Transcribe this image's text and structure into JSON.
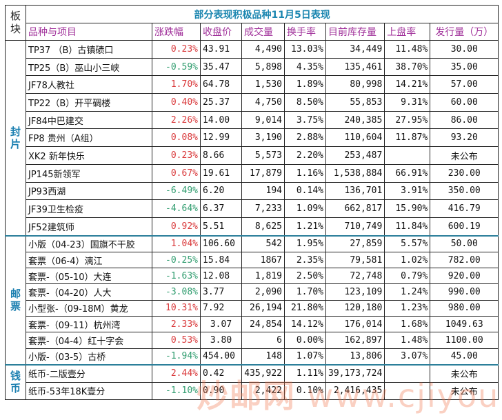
{
  "title": "部分表现积极品种11月5日表现",
  "corner_label": "板块",
  "headers": [
    "品种与项目",
    "涨跌幅",
    "收盘价",
    "成交量",
    "换手率",
    "目前库存量",
    "上盘率",
    "发行量（万）"
  ],
  "colors": {
    "up": "#d9383a",
    "down": "#2f9c6e",
    "title": "#1b86b0",
    "header": "#a0309a",
    "section": "#1b7fb0"
  },
  "sections": [
    {
      "label": "封片",
      "rows": [
        [
          "TP37 （B）古镇碛口",
          "0.23%",
          "43.91",
          "4,490",
          "13.03%",
          "34,449",
          "11.48%",
          "30.00"
        ],
        [
          "TP25（B）巫山小三峡",
          "-0.59%",
          "35.47",
          "5,898",
          "4.35%",
          "135,461",
          "38.70%",
          "35.00"
        ],
        [
          "JF78人教社",
          "1.70%",
          "64.78",
          "1,530",
          "1.89%",
          "80,998",
          "14.21%",
          "57.00"
        ],
        [
          "TP22（B）开平碉楼",
          "0.40%",
          "25.37",
          "4,750",
          "8.50%",
          "55,853",
          "9.31%",
          "60.00"
        ],
        [
          "JF84中巴建交",
          "2.26%",
          "14.00",
          "9,014",
          "3.75%",
          "240,385",
          "27.95%",
          "86.00"
        ],
        [
          "FP8 贵州（A组）",
          "0.08%",
          "12.99",
          "3,190",
          "2.88%",
          "110,604",
          "11.87%",
          "93.20"
        ],
        [
          "XK2 新年快乐",
          "0.23%",
          "8.66",
          "5,573",
          "2.20%",
          "253,487",
          "",
          "未公布"
        ],
        [
          "JP145新领军",
          "0.67%",
          "19.61",
          "17,879",
          "1.16%",
          "1,538,884",
          "66.91%",
          "230.00"
        ],
        [
          "JP93西湖",
          "-6.49%",
          "6.20",
          "194",
          "0.14%",
          "136,701",
          "3.91%",
          "350.00"
        ],
        [
          "JF39卫生检疫",
          "-4.64%",
          "6.37",
          "7,233",
          "1.09%",
          "662,817",
          "15.90%",
          "416.79"
        ],
        [
          "JF52建筑师",
          "0.92%",
          "5.51",
          "8,625",
          "1.21%",
          "710,749",
          "11.84%",
          "600.19"
        ]
      ]
    },
    {
      "label": "邮票",
      "rows": [
        [
          "小版（04-23）国旗不干胶",
          "1.04%",
          "106.60",
          "542",
          "1.95%",
          "27,859",
          "5.57%",
          "50.00"
        ],
        [
          "套票（06-4）漓江",
          "-0.25%",
          "15.84",
          "1867",
          "2.35%",
          "79,581",
          "1.02%",
          "782.00"
        ],
        [
          "套票-（05-10）大连",
          "-1.63%",
          "12.08",
          "1,819",
          "2.50%",
          "72,748",
          "0.79%",
          "920.00"
        ],
        [
          "套票-（04-20）人大",
          "-3.08%",
          "3.77",
          "2,090",
          "1.70%",
          "123,109",
          "1.24%",
          "990.00"
        ],
        [
          "小型张-（09-18M）黄龙",
          "10.31%",
          "7.92",
          "26,194",
          "21.80%",
          "120,180",
          "1.23%",
          "980.00"
        ],
        [
          "套票-（09-11）杭州湾",
          "2.33%",
          "3.07",
          "24,854",
          "14.12%",
          "176,014",
          "1.68%",
          "1049.63"
        ],
        [
          "套票-（04-4）红十字会",
          "0.53%",
          "3.80",
          "6",
          "0.00%",
          "162,897",
          "1.48%",
          "1100.00"
        ],
        [
          "小版-（03-5）古桥",
          "-1.94%",
          "454.00",
          "148",
          "1.07%",
          "13,806",
          "3.07%",
          "45.00"
        ]
      ]
    },
    {
      "label": "钱币",
      "rows": [
        [
          "纸币-二版壹分",
          "2.44%",
          "0.42",
          "435,922",
          "1.11%",
          "39,173,724",
          "",
          "未公布"
        ],
        [
          "纸币-53年18K壹分",
          "-1.10%",
          "0.90",
          "2,422",
          "0.10%",
          "2,416,435",
          "",
          "未公布"
        ]
      ]
    }
  ],
  "watermark": {
    "cn": "炒邮网",
    "url": "www.cjiyou.net"
  }
}
